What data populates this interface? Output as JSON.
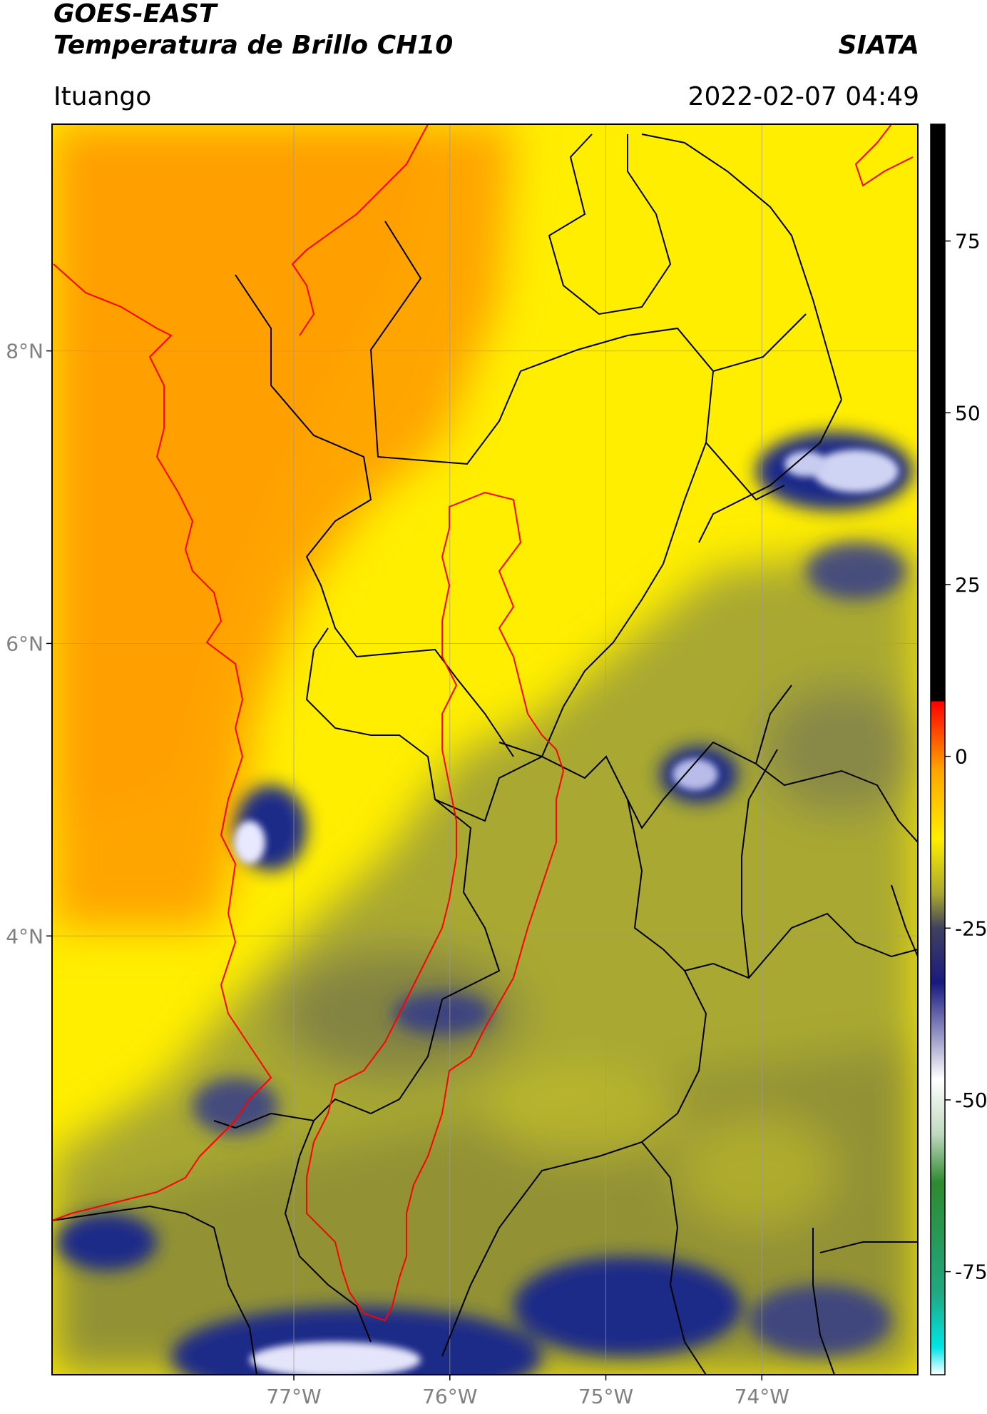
{
  "header": {
    "title_line1": "GOES-EAST",
    "title_line2": "Temperatura de Brillo CH10",
    "organization": "SIATA",
    "location": "Ituango",
    "datetime": "2022-02-07 04:49"
  },
  "map": {
    "lon_range": [
      -78.55,
      -73.0
    ],
    "lat_range": [
      1.0,
      9.55
    ],
    "x_ticks": [
      {
        "lon": -77,
        "label": "77°W"
      },
      {
        "lon": -76,
        "label": "76°W"
      },
      {
        "lon": -75,
        "label": "75°W"
      },
      {
        "lon": -74,
        "label": "74°W"
      }
    ],
    "y_ticks": [
      {
        "lat": 8,
        "label": "8°N"
      },
      {
        "lat": 6,
        "label": "6°N"
      },
      {
        "lat": 4,
        "label": "4°N"
      }
    ],
    "gridlines": true,
    "colors": {
      "warm_orange": "#ffa500",
      "yellow": "#ffee00",
      "olive": "#a8a830",
      "navy": "#141e78",
      "coastline": "#ff0000",
      "borders": "#000000"
    }
  },
  "colorbar": {
    "range": [
      -90,
      92
    ],
    "ticks": [
      {
        "value": 75,
        "label": "75"
      },
      {
        "value": 50,
        "label": "50"
      },
      {
        "value": 25,
        "label": "25"
      },
      {
        "value": 0,
        "label": "0"
      },
      {
        "value": -25,
        "label": "-25"
      },
      {
        "value": -50,
        "label": "-50"
      },
      {
        "value": -75,
        "label": "-75"
      }
    ],
    "stops": [
      {
        "value": -90,
        "color": "#ffffff"
      },
      {
        "value": -86,
        "color": "#00e5e5"
      },
      {
        "value": -78,
        "color": "#20a880"
      },
      {
        "value": -62,
        "color": "#2f8a2f"
      },
      {
        "value": -55,
        "color": "#bfd8bf"
      },
      {
        "value": -47,
        "color": "#ffffff"
      },
      {
        "value": -33,
        "color": "#1a1a80"
      },
      {
        "value": -25,
        "color": "#404060"
      },
      {
        "value": -20,
        "color": "#a8a830"
      },
      {
        "value": -12,
        "color": "#ffee00"
      },
      {
        "value": -2,
        "color": "#ffa500"
      },
      {
        "value": 8,
        "color": "#ff0000"
      },
      {
        "value": 8.01,
        "color": "#000000"
      },
      {
        "value": 92,
        "color": "#000000"
      }
    ]
  }
}
